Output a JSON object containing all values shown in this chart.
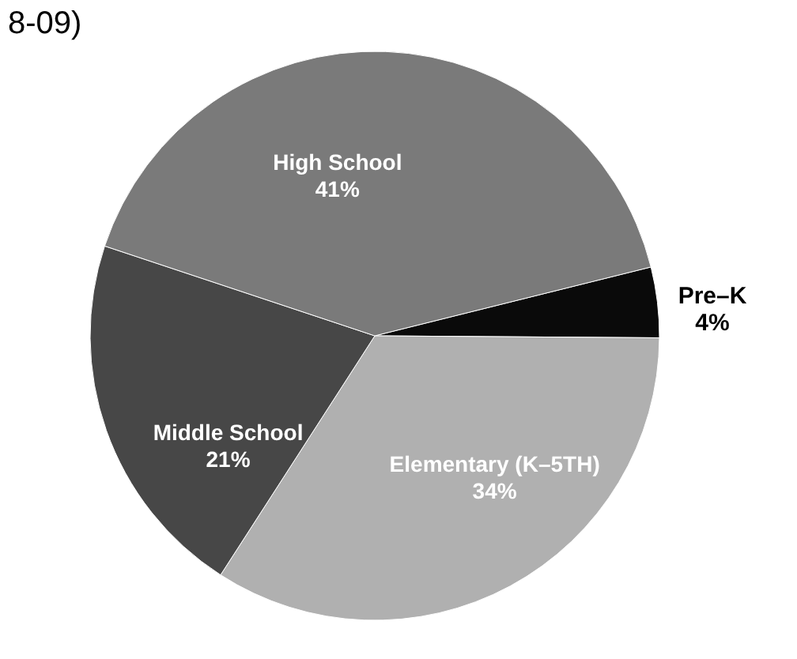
{
  "chart_data": {
    "type": "pie",
    "title": "8-09)",
    "categories": [
      "Pre–K",
      "Elementary (K–5TH)",
      "Middle School",
      "High School"
    ],
    "values": [
      4,
      34,
      21,
      41
    ],
    "value_labels": [
      "4%",
      "34%",
      "21%",
      "41%"
    ],
    "colors": [
      "#0a0a0a",
      "#b0b0b0",
      "#474747",
      "#7a7a7a"
    ]
  }
}
